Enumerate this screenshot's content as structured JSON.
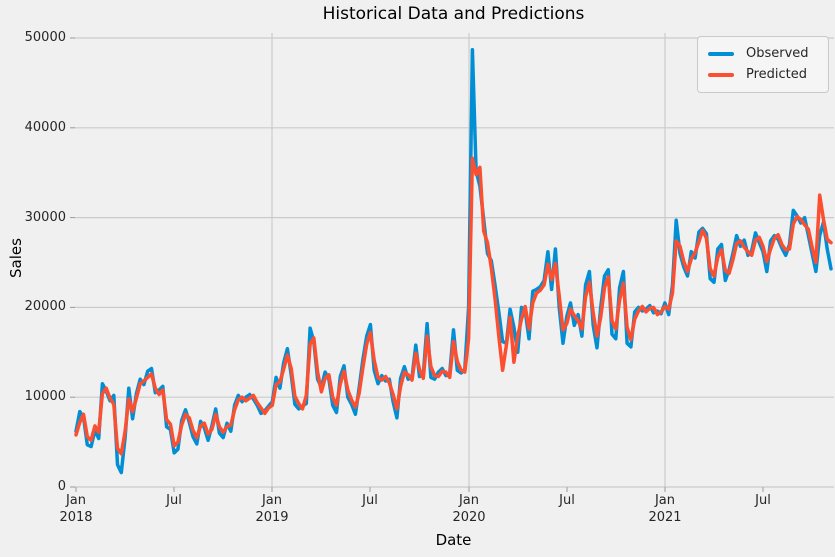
{
  "figure": {
    "background": "#f0f0f0",
    "grid_color": "#cbcbcb"
  },
  "chart_data": {
    "type": "line",
    "title": "Historical Data and Predictions",
    "xlabel": "Date",
    "ylabel": "Sales",
    "x_start": "2018-01",
    "x_end": "2021-11",
    "x_frequency": "weekly",
    "ylim": [
      0,
      50000
    ],
    "grid": true,
    "legend_position": "upper right",
    "yticklabels": [
      "0",
      "10000",
      "20000",
      "30000",
      "40000",
      "50000"
    ],
    "xticks": [
      {
        "month": "Jan",
        "year": "2018"
      },
      {
        "month": "Jul",
        "year": ""
      },
      {
        "month": "Jan",
        "year": "2019"
      },
      {
        "month": "Jul",
        "year": ""
      },
      {
        "month": "Jan",
        "year": "2020"
      },
      {
        "month": "Jul",
        "year": ""
      },
      {
        "month": "Jan",
        "year": "2021"
      },
      {
        "month": "Jul",
        "year": ""
      }
    ],
    "series": [
      {
        "name": "Observed",
        "color": "#008fd5",
        "values": [
          6200,
          8400,
          7800,
          4700,
          4500,
          6300,
          5400,
          11500,
          10700,
          9600,
          10200,
          2500,
          1600,
          5500,
          11000,
          7600,
          10400,
          12000,
          11400,
          12900,
          13200,
          10500,
          10800,
          11200,
          6700,
          6400,
          3800,
          4200,
          7400,
          8600,
          7200,
          5600,
          4800,
          7300,
          6600,
          5200,
          6800,
          8700,
          6000,
          5500,
          7100,
          6200,
          9100,
          10200,
          9500,
          10000,
          10300,
          9800,
          9100,
          8200,
          8500,
          9000,
          9500,
          12200,
          11000,
          13800,
          15400,
          12500,
          9200,
          8700,
          9000,
          9300,
          17700,
          16200,
          12000,
          11100,
          12800,
          12000,
          9100,
          8300,
          12300,
          13500,
          10000,
          9200,
          8100,
          11000,
          14200,
          16800,
          18100,
          13000,
          11500,
          12400,
          11800,
          12000,
          9500,
          7700,
          12100,
          13400,
          12000,
          12200,
          15800,
          12300,
          12500,
          18200,
          12200,
          12000,
          12800,
          13200,
          12400,
          12600,
          17500,
          13000,
          12700,
          13100,
          20000,
          48700,
          35200,
          33500,
          29800,
          26000,
          25200,
          22500,
          19500,
          16200,
          16000,
          19800,
          17800,
          15000,
          20000,
          19600,
          16500,
          21800,
          22000,
          22300,
          23000,
          26200,
          22000,
          26500,
          20000,
          16000,
          19000,
          20500,
          18000,
          19200,
          16800,
          22500,
          24000,
          18000,
          15500,
          20000,
          23500,
          24200,
          17000,
          16500,
          22200,
          24000,
          16000,
          15600,
          19500,
          20000,
          19600,
          19800,
          20200,
          19400,
          19600,
          19300,
          20500,
          19200,
          22500,
          29700,
          26000,
          24500,
          23500,
          26200,
          25500,
          28400,
          28800,
          28200,
          23200,
          22800,
          26500,
          27000,
          23000,
          24200,
          26000,
          28000,
          26800,
          27500,
          25800,
          26300,
          28300,
          27200,
          26200,
          24000,
          27400,
          28000,
          27600,
          26600,
          25800,
          27000,
          30800,
          30200,
          29400,
          30000,
          28000,
          26000,
          24000,
          28000,
          29500,
          26500,
          24300
        ]
      },
      {
        "name": "Predicted",
        "color": "#fc4f30",
        "values": [
          5800,
          7200,
          8100,
          5600,
          5200,
          6800,
          6100,
          10400,
          11000,
          9900,
          9200,
          4300,
          3700,
          6200,
          9800,
          8400,
          9900,
          11500,
          11800,
          12200,
          12600,
          11000,
          10300,
          10800,
          7500,
          7000,
          4600,
          5000,
          6900,
          8100,
          7700,
          6300,
          5500,
          6800,
          7100,
          5900,
          6400,
          8100,
          6700,
          6100,
          6700,
          6900,
          8600,
          9700,
          10000,
          9600,
          9900,
          10200,
          9400,
          8800,
          8200,
          8800,
          9100,
          11400,
          11700,
          13100,
          14700,
          13200,
          10100,
          9300,
          8700,
          10200,
          15900,
          16600,
          12800,
          10600,
          12100,
          12500,
          10000,
          9100,
          11500,
          12900,
          10800,
          9700,
          8900,
          10400,
          13300,
          15900,
          17200,
          14100,
          12200,
          11900,
          12300,
          11600,
          10300,
          8700,
          11200,
          12800,
          12500,
          11900,
          14900,
          13100,
          12100,
          16800,
          13400,
          12400,
          12300,
          12900,
          12800,
          12200,
          16200,
          14000,
          13000,
          12800,
          16500,
          36600,
          34800,
          35600,
          28500,
          27200,
          24400,
          21000,
          16800,
          13000,
          15800,
          18900,
          13900,
          16800,
          18700,
          20100,
          17600,
          20500,
          21600,
          21900,
          22500,
          24800,
          23100,
          24900,
          21300,
          17500,
          18200,
          19800,
          19100,
          18500,
          17600,
          21200,
          22800,
          19400,
          16800,
          18900,
          22200,
          23400,
          18500,
          17600,
          20800,
          22700,
          17800,
          16400,
          18700,
          19600,
          20100,
          19500,
          19900,
          20000,
          19200,
          19500,
          20100,
          19800,
          21600,
          27400,
          26800,
          25100,
          24000,
          25400,
          26100,
          27300,
          28600,
          27700,
          24300,
          23500,
          25600,
          26400,
          24100,
          23800,
          25300,
          27100,
          27400,
          26700,
          26200,
          25800,
          27500,
          27800,
          26800,
          25100,
          26500,
          27700,
          28100,
          27000,
          26400,
          26500,
          29300,
          30100,
          29800,
          29200,
          28700,
          26700,
          25000,
          32500,
          29800,
          27600,
          27200
        ]
      }
    ]
  }
}
